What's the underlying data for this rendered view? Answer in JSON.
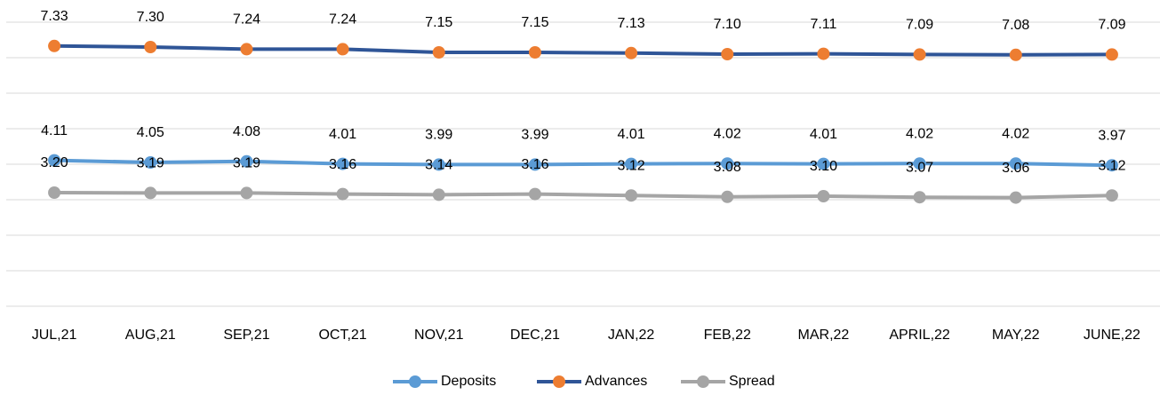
{
  "chart_data": {
    "type": "line",
    "categories": [
      "JUL,21",
      "AUG,21",
      "SEP,21",
      "OCT,21",
      "NOV,21",
      "DEC,21",
      "JAN,22",
      "FEB,22",
      "MAR,22",
      "APRIL,22",
      "MAY,22",
      "JUNE,22"
    ],
    "series": [
      {
        "name": "Deposits",
        "color": "#5b9bd5",
        "marker_color": "#5b9bd5",
        "values": [
          4.11,
          4.05,
          4.08,
          4.01,
          3.99,
          3.99,
          4.01,
          4.02,
          4.01,
          4.02,
          4.02,
          3.97
        ],
        "value_labels": [
          "4.11",
          "4.05",
          "4.08",
          "4.01",
          "3.99",
          "3.99",
          "4.01",
          "4.02",
          "4.01",
          "4.02",
          "4.02",
          "3.97"
        ]
      },
      {
        "name": "Advances",
        "color": "#2f5597",
        "marker_color": "#ed7d31",
        "values": [
          7.33,
          7.3,
          7.24,
          7.24,
          7.15,
          7.15,
          7.13,
          7.1,
          7.11,
          7.09,
          7.08,
          7.09
        ],
        "value_labels": [
          "7.33",
          "7.30",
          "7.24",
          "7.24",
          "7.15",
          "7.15",
          "7.13",
          "7.10",
          "7.11",
          "7.09",
          "7.08",
          "7.09"
        ]
      },
      {
        "name": "Spread",
        "color": "#a5a5a5",
        "marker_color": "#a5a5a5",
        "values": [
          3.2,
          3.19,
          3.19,
          3.16,
          3.14,
          3.16,
          3.12,
          3.08,
          3.1,
          3.07,
          3.06,
          3.12
        ],
        "value_labels": [
          "3.20",
          "3.19",
          "3.19",
          "3.16",
          "3.14",
          "3.16",
          "3.12",
          "3.08",
          "3.10",
          "3.07",
          "3.06",
          "3.12"
        ]
      }
    ],
    "ylim": [
      0,
      8
    ],
    "yticks": [
      0,
      1,
      2,
      3,
      4,
      5,
      6,
      7,
      8
    ],
    "grid": true,
    "legend": "bottom"
  }
}
